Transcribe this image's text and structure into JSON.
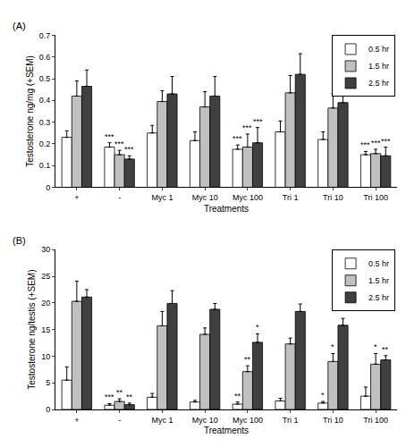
{
  "chart_data": [
    {
      "type": "bar",
      "title": "(A)",
      "x_label": "Treatments",
      "y_label": "Testosterone ng/mg (+SEM)",
      "categories": [
        "+",
        "-",
        "Myc 1",
        "Myc 10",
        "Myc 100",
        "Tri 1",
        "Tri 10",
        "Tri 100"
      ],
      "series": [
        {
          "name": "0.5 hr",
          "color": "#ffffff",
          "values": [
            0.23,
            0.185,
            0.25,
            0.215,
            0.175,
            0.255,
            0.22,
            0.15
          ],
          "errors": [
            0.03,
            0.02,
            0.035,
            0.04,
            0.02,
            0.05,
            0.035,
            0.015
          ]
        },
        {
          "name": "1.5 hr",
          "color": "#c0c0c0",
          "values": [
            0.42,
            0.15,
            0.395,
            0.37,
            0.185,
            0.435,
            0.365,
            0.155
          ],
          "errors": [
            0.07,
            0.02,
            0.05,
            0.07,
            0.06,
            0.08,
            0.065,
            0.02
          ]
        },
        {
          "name": "2.5 hr",
          "color": "#404040",
          "values": [
            0.465,
            0.13,
            0.43,
            0.42,
            0.205,
            0.52,
            0.39,
            0.145
          ],
          "errors": [
            0.075,
            0.015,
            0.08,
            0.09,
            0.07,
            0.095,
            0.08,
            0.04
          ]
        }
      ],
      "significance": [
        {
          "category": "-",
          "series": "0.5 hr",
          "text": "***"
        },
        {
          "category": "-",
          "series": "1.5 hr",
          "text": "***"
        },
        {
          "category": "-",
          "series": "2.5 hr",
          "text": "***"
        },
        {
          "category": "Myc 100",
          "series": "0.5 hr",
          "text": "***"
        },
        {
          "category": "Myc 100",
          "series": "1.5 hr",
          "text": "***"
        },
        {
          "category": "Myc 100",
          "series": "2.5 hr",
          "text": "***"
        },
        {
          "category": "Tri 100",
          "series": "0.5 hr",
          "text": "***"
        },
        {
          "category": "Tri 100",
          "series": "1.5 hr",
          "text": "***"
        },
        {
          "category": "Tri 100",
          "series": "2.5 hr",
          "text": "***"
        }
      ],
      "ylim": [
        0,
        0.7
      ],
      "yticks": [
        0,
        0.1,
        0.2,
        0.3,
        0.4,
        0.5,
        0.6,
        0.7
      ],
      "grid": false,
      "legend": "upper right"
    },
    {
      "type": "bar",
      "title": "(B)",
      "x_label": "Treatments",
      "y_label": "Testosterone ng/testis (+SEM)",
      "categories": [
        "+",
        "-",
        "Myc 1",
        "Myc 10",
        "Myc 100",
        "Tri 1",
        "Tri 10",
        "Tri 100"
      ],
      "series": [
        {
          "name": "0.5 hr",
          "color": "#ffffff",
          "values": [
            5.5,
            0.8,
            2.3,
            1.4,
            1.0,
            1.6,
            1.2,
            2.5
          ],
          "errors": [
            2.5,
            0.3,
            0.7,
            0.3,
            0.4,
            0.5,
            0.3,
            1.7
          ]
        },
        {
          "name": "1.5 hr",
          "color": "#c0c0c0",
          "values": [
            20.3,
            1.5,
            15.7,
            14.1,
            7.1,
            12.3,
            9.0,
            8.5
          ],
          "errors": [
            3.8,
            0.5,
            2.7,
            1.2,
            1.1,
            1.1,
            1.5,
            2.0
          ]
        },
        {
          "name": "2.5 hr",
          "color": "#404040",
          "values": [
            21.1,
            0.9,
            19.9,
            18.8,
            12.6,
            18.4,
            15.8,
            9.3
          ],
          "errors": [
            1.4,
            0.3,
            2.4,
            1.1,
            1.6,
            1.4,
            1.3,
            0.8
          ]
        }
      ],
      "significance": [
        {
          "category": "-",
          "series": "0.5 hr",
          "text": "***"
        },
        {
          "category": "-",
          "series": "1.5 hr",
          "text": "**"
        },
        {
          "category": "-",
          "series": "2.5 hr",
          "text": "**"
        },
        {
          "category": "Myc 100",
          "series": "0.5 hr",
          "text": "**"
        },
        {
          "category": "Myc 100",
          "series": "1.5 hr",
          "text": "**"
        },
        {
          "category": "Myc 100",
          "series": "2.5 hr",
          "text": "*"
        },
        {
          "category": "Tri 10",
          "series": "0.5 hr",
          "text": "*"
        },
        {
          "category": "Tri 10",
          "series": "1.5 hr",
          "text": "*"
        },
        {
          "category": "Tri 100",
          "series": "1.5 hr",
          "text": "*"
        },
        {
          "category": "Tri 100",
          "series": "2.5 hr",
          "text": "**"
        }
      ],
      "ylim": [
        0,
        30
      ],
      "yticks": [
        0,
        5,
        10,
        15,
        20,
        25,
        30
      ],
      "grid": false,
      "legend": "upper right"
    }
  ]
}
